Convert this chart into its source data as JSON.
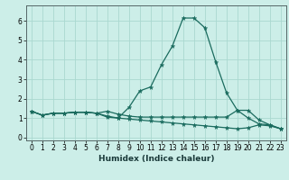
{
  "title": "",
  "xlabel": "Humidex (Indice chaleur)",
  "bg_color": "#cceee8",
  "grid_color": "#aad8d0",
  "line_color": "#1a6b5e",
  "xlim": [
    -0.5,
    23.5
  ],
  "ylim": [
    -0.15,
    6.8
  ],
  "xticks": [
    0,
    1,
    2,
    3,
    4,
    5,
    6,
    7,
    8,
    9,
    10,
    11,
    12,
    13,
    14,
    15,
    16,
    17,
    18,
    19,
    20,
    21,
    22,
    23
  ],
  "yticks": [
    0,
    1,
    2,
    3,
    4,
    5,
    6
  ],
  "curve1_y": [
    1.35,
    1.15,
    1.25,
    1.25,
    1.3,
    1.3,
    1.25,
    1.05,
    1.0,
    1.55,
    2.4,
    2.6,
    3.75,
    4.7,
    6.15,
    6.15,
    5.65,
    3.9,
    2.3,
    1.4,
    1.4,
    0.9,
    0.65,
    0.45
  ],
  "curve2_y": [
    1.35,
    1.15,
    1.25,
    1.25,
    1.3,
    1.3,
    1.25,
    1.35,
    1.2,
    1.1,
    1.05,
    1.05,
    1.05,
    1.05,
    1.05,
    1.05,
    1.05,
    1.05,
    1.05,
    1.4,
    1.0,
    0.7,
    0.65,
    0.45
  ],
  "curve3_y": [
    1.35,
    1.15,
    1.25,
    1.25,
    1.3,
    1.3,
    1.25,
    1.1,
    1.0,
    0.95,
    0.9,
    0.85,
    0.8,
    0.75,
    0.7,
    0.65,
    0.6,
    0.55,
    0.5,
    0.45,
    0.5,
    0.65,
    0.6,
    0.45
  ],
  "markersize": 2.0,
  "linewidth": 0.9,
  "xlabel_fontsize": 6.5,
  "tick_fontsize": 5.5
}
